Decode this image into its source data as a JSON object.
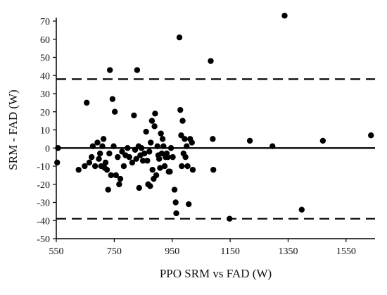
{
  "chart_data": {
    "type": "scatter",
    "xlabel": "PPO SRM vs FAD  (W)",
    "ylabel": "SRM - FAD (W)",
    "xlim": [
      550,
      1650
    ],
    "ylim": [
      -50,
      70
    ],
    "x_ticks": [
      550,
      750,
      950,
      1150,
      1350,
      1550
    ],
    "y_ticks": [
      70,
      60,
      50,
      40,
      30,
      20,
      10,
      0,
      -10,
      -20,
      -30,
      -40,
      -50
    ],
    "reference_lines": {
      "mean": 0,
      "upper_limit": 38,
      "lower_limit": -39
    },
    "point_color": "#000000",
    "grid": false,
    "legend": "none",
    "points": [
      [
        556,
        0
      ],
      [
        553,
        -8
      ],
      [
        627,
        -12
      ],
      [
        648,
        -10
      ],
      [
        655,
        25
      ],
      [
        664,
        -8
      ],
      [
        672,
        -5
      ],
      [
        676,
        1
      ],
      [
        684,
        -10
      ],
      [
        692,
        3
      ],
      [
        697,
        -6
      ],
      [
        701,
        -3
      ],
      [
        705,
        -10
      ],
      [
        709,
        1
      ],
      [
        713,
        5
      ],
      [
        717,
        -11
      ],
      [
        720,
        -8
      ],
      [
        725,
        -12
      ],
      [
        729,
        -23
      ],
      [
        733,
        -3
      ],
      [
        735,
        43
      ],
      [
        739,
        -15
      ],
      [
        744,
        27
      ],
      [
        748,
        1
      ],
      [
        752,
        20
      ],
      [
        756,
        -15
      ],
      [
        762,
        -5
      ],
      [
        767,
        -20
      ],
      [
        771,
        -17
      ],
      [
        777,
        -2
      ],
      [
        783,
        -10
      ],
      [
        789,
        -4
      ],
      [
        796,
        0
      ],
      [
        802,
        -5
      ],
      [
        812,
        -8
      ],
      [
        818,
        18
      ],
      [
        822,
        -1
      ],
      [
        826,
        -6
      ],
      [
        829,
        43
      ],
      [
        834,
        1
      ],
      [
        836,
        -22
      ],
      [
        840,
        -4
      ],
      [
        844,
        0
      ],
      [
        849,
        -7
      ],
      [
        854,
        -3
      ],
      [
        860,
        9
      ],
      [
        864,
        -7
      ],
      [
        867,
        -20
      ],
      [
        871,
        -2
      ],
      [
        874,
        -21
      ],
      [
        876,
        3
      ],
      [
        880,
        15
      ],
      [
        882,
        -12
      ],
      [
        886,
        -17
      ],
      [
        889,
        12
      ],
      [
        891,
        19
      ],
      [
        895,
        -15
      ],
      [
        899,
        1
      ],
      [
        902,
        -4
      ],
      [
        905,
        -6
      ],
      [
        908,
        -11
      ],
      [
        911,
        8
      ],
      [
        914,
        -3
      ],
      [
        917,
        5
      ],
      [
        920,
        1
      ],
      [
        924,
        -10
      ],
      [
        927,
        -5
      ],
      [
        931,
        -3
      ],
      [
        935,
        -5
      ],
      [
        938,
        -13
      ],
      [
        942,
        -13
      ],
      [
        946,
        0
      ],
      [
        952,
        -5
      ],
      [
        958,
        -23
      ],
      [
        962,
        -30
      ],
      [
        964,
        -36
      ],
      [
        975,
        61
      ],
      [
        978,
        21
      ],
      [
        981,
        7
      ],
      [
        983,
        -10
      ],
      [
        986,
        15
      ],
      [
        989,
        -3
      ],
      [
        993,
        5
      ],
      [
        996,
        -5
      ],
      [
        1000,
        1
      ],
      [
        1003,
        -10
      ],
      [
        1007,
        -31
      ],
      [
        1012,
        5
      ],
      [
        1018,
        3
      ],
      [
        1021,
        -12
      ],
      [
        1083,
        48
      ],
      [
        1090,
        5
      ],
      [
        1092,
        -12
      ],
      [
        1148,
        -39
      ],
      [
        1218,
        4
      ],
      [
        1296,
        1
      ],
      [
        1338,
        73
      ],
      [
        1397,
        -34
      ],
      [
        1470,
        4
      ],
      [
        1636,
        7
      ]
    ]
  }
}
